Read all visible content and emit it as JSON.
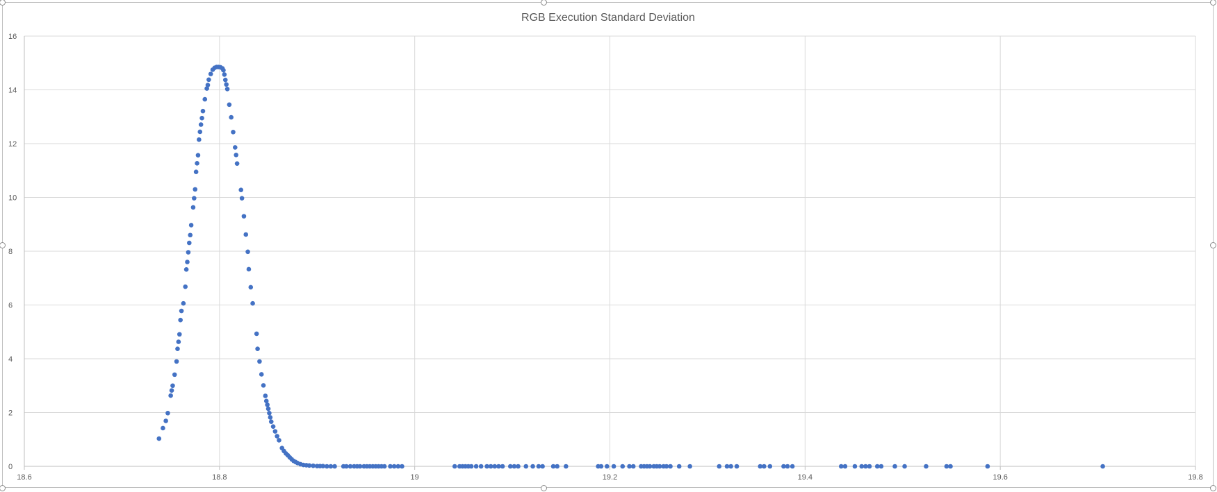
{
  "chart_data": {
    "type": "scatter",
    "title": "RGB Execution Standard Deviation",
    "xlabel": "",
    "ylabel": "",
    "xlim": [
      18.6,
      19.8
    ],
    "ylim": [
      0,
      16
    ],
    "x_ticks": [
      "18.6",
      "18.8",
      "19",
      "19.2",
      "19.4",
      "19.6",
      "19.8"
    ],
    "y_ticks": [
      "0",
      "2",
      "4",
      "6",
      "8",
      "10",
      "12",
      "14",
      "16"
    ],
    "grid": true,
    "legend": "none",
    "marker_color": "#4472c4",
    "series": [
      {
        "points": [
          [
            18.738,
            1.03
          ],
          [
            18.742,
            1.42
          ],
          [
            18.745,
            1.69
          ],
          [
            18.747,
            1.98
          ],
          [
            18.75,
            2.63
          ],
          [
            18.751,
            2.82
          ],
          [
            18.752,
            3.0
          ],
          [
            18.754,
            3.41
          ],
          [
            18.756,
            3.9
          ],
          [
            18.757,
            4.37
          ],
          [
            18.758,
            4.63
          ],
          [
            18.759,
            4.91
          ],
          [
            18.76,
            5.44
          ],
          [
            18.761,
            5.78
          ],
          [
            18.763,
            6.06
          ],
          [
            18.765,
            6.68
          ],
          [
            18.766,
            7.32
          ],
          [
            18.767,
            7.6
          ],
          [
            18.768,
            7.96
          ],
          [
            18.769,
            8.31
          ],
          [
            18.77,
            8.6
          ],
          [
            18.771,
            8.97
          ],
          [
            18.773,
            9.63
          ],
          [
            18.774,
            9.97
          ],
          [
            18.775,
            10.3
          ],
          [
            18.776,
            10.95
          ],
          [
            18.777,
            11.27
          ],
          [
            18.778,
            11.57
          ],
          [
            18.779,
            12.15
          ],
          [
            18.78,
            12.44
          ],
          [
            18.781,
            12.71
          ],
          [
            18.782,
            12.95
          ],
          [
            18.783,
            13.21
          ],
          [
            18.785,
            13.65
          ],
          [
            18.787,
            14.05
          ],
          [
            18.788,
            14.18
          ],
          [
            18.789,
            14.38
          ],
          [
            18.791,
            14.59
          ],
          [
            18.793,
            14.75
          ],
          [
            18.795,
            14.82
          ],
          [
            18.797,
            14.85
          ],
          [
            18.799,
            14.85
          ],
          [
            18.801,
            14.84
          ],
          [
            18.803,
            14.8
          ],
          [
            18.804,
            14.73
          ],
          [
            18.805,
            14.57
          ],
          [
            18.806,
            14.37
          ],
          [
            18.807,
            14.2
          ],
          [
            18.808,
            14.03
          ],
          [
            18.81,
            13.45
          ],
          [
            18.812,
            12.98
          ],
          [
            18.814,
            12.43
          ],
          [
            18.816,
            11.86
          ],
          [
            18.817,
            11.58
          ],
          [
            18.818,
            11.26
          ],
          [
            18.822,
            10.28
          ],
          [
            18.823,
            9.97
          ],
          [
            18.825,
            9.3
          ],
          [
            18.827,
            8.62
          ],
          [
            18.829,
            7.98
          ],
          [
            18.83,
            7.33
          ],
          [
            18.832,
            6.66
          ],
          [
            18.834,
            6.06
          ],
          [
            18.838,
            4.93
          ],
          [
            18.839,
            4.37
          ],
          [
            18.841,
            3.9
          ],
          [
            18.843,
            3.42
          ],
          [
            18.845,
            3.01
          ],
          [
            18.847,
            2.62
          ],
          [
            18.848,
            2.43
          ],
          [
            18.849,
            2.29
          ],
          [
            18.85,
            2.14
          ],
          [
            18.851,
            1.98
          ],
          [
            18.852,
            1.82
          ],
          [
            18.853,
            1.66
          ],
          [
            18.855,
            1.48
          ],
          [
            18.857,
            1.3
          ],
          [
            18.859,
            1.12
          ],
          [
            18.861,
            0.97
          ],
          [
            18.864,
            0.68
          ],
          [
            18.866,
            0.57
          ],
          [
            18.868,
            0.48
          ],
          [
            18.87,
            0.41
          ],
          [
            18.872,
            0.33
          ],
          [
            18.874,
            0.26
          ],
          [
            18.876,
            0.2
          ],
          [
            18.878,
            0.16
          ],
          [
            18.88,
            0.12
          ],
          [
            18.883,
            0.08
          ],
          [
            18.886,
            0.05
          ],
          [
            18.889,
            0.04
          ],
          [
            18.892,
            0.03
          ],
          [
            18.896,
            0.02
          ],
          [
            18.9,
            0.01
          ],
          [
            18.903,
            0.01
          ],
          [
            18.906,
            0.01
          ],
          [
            18.91,
            0.0
          ],
          [
            18.914,
            0.0
          ],
          [
            18.918,
            0.0
          ],
          [
            18.927,
            0.0
          ],
          [
            18.93,
            0.0
          ],
          [
            18.934,
            0.0
          ],
          [
            18.938,
            0.0
          ],
          [
            18.941,
            0.0
          ],
          [
            18.944,
            0.0
          ],
          [
            18.948,
            0.0
          ],
          [
            18.951,
            0.0
          ],
          [
            18.954,
            0.0
          ],
          [
            18.957,
            0.0
          ],
          [
            18.96,
            0.0
          ],
          [
            18.963,
            0.0
          ],
          [
            18.966,
            0.0
          ],
          [
            18.969,
            0.0
          ],
          [
            18.975,
            0.0
          ],
          [
            18.979,
            0.0
          ],
          [
            18.983,
            0.0
          ],
          [
            18.987,
            0.0
          ],
          [
            19.041,
            0.0
          ],
          [
            19.046,
            0.0
          ],
          [
            19.049,
            0.0
          ],
          [
            19.052,
            0.0
          ],
          [
            19.055,
            0.0
          ],
          [
            19.058,
            0.0
          ],
          [
            19.063,
            0.0
          ],
          [
            19.068,
            0.0
          ],
          [
            19.074,
            0.0
          ],
          [
            19.078,
            0.0
          ],
          [
            19.082,
            0.0
          ],
          [
            19.086,
            0.0
          ],
          [
            19.09,
            0.0
          ],
          [
            19.098,
            0.0
          ],
          [
            19.102,
            0.0
          ],
          [
            19.106,
            0.0
          ],
          [
            19.114,
            0.0
          ],
          [
            19.121,
            0.0
          ],
          [
            19.127,
            0.0
          ],
          [
            19.131,
            0.0
          ],
          [
            19.142,
            0.0
          ],
          [
            19.146,
            0.0
          ],
          [
            19.155,
            0.0
          ],
          [
            19.188,
            0.0
          ],
          [
            19.191,
            0.0
          ],
          [
            19.197,
            0.0
          ],
          [
            19.204,
            0.0
          ],
          [
            19.213,
            0.0
          ],
          [
            19.22,
            0.0
          ],
          [
            19.224,
            0.0
          ],
          [
            19.232,
            0.0
          ],
          [
            19.235,
            0.0
          ],
          [
            19.238,
            0.0
          ],
          [
            19.241,
            0.0
          ],
          [
            19.245,
            0.0
          ],
          [
            19.248,
            0.0
          ],
          [
            19.251,
            0.0
          ],
          [
            19.255,
            0.0
          ],
          [
            19.258,
            0.0
          ],
          [
            19.262,
            0.0
          ],
          [
            19.271,
            0.0
          ],
          [
            19.282,
            0.0
          ],
          [
            19.312,
            0.0
          ],
          [
            19.32,
            0.0
          ],
          [
            19.324,
            0.0
          ],
          [
            19.33,
            0.0
          ],
          [
            19.354,
            0.0
          ],
          [
            19.358,
            0.0
          ],
          [
            19.364,
            0.0
          ],
          [
            19.378,
            0.0
          ],
          [
            19.382,
            0.0
          ],
          [
            19.387,
            0.0
          ],
          [
            19.437,
            0.0
          ],
          [
            19.441,
            0.0
          ],
          [
            19.451,
            0.0
          ],
          [
            19.458,
            0.0
          ],
          [
            19.462,
            0.0
          ],
          [
            19.466,
            0.0
          ],
          [
            19.474,
            0.0
          ],
          [
            19.478,
            0.0
          ],
          [
            19.492,
            0.0
          ],
          [
            19.502,
            0.0
          ],
          [
            19.524,
            0.0
          ],
          [
            19.545,
            0.0
          ],
          [
            19.549,
            0.0
          ],
          [
            19.587,
            0.0
          ],
          [
            19.705,
            0.0
          ]
        ]
      }
    ]
  }
}
